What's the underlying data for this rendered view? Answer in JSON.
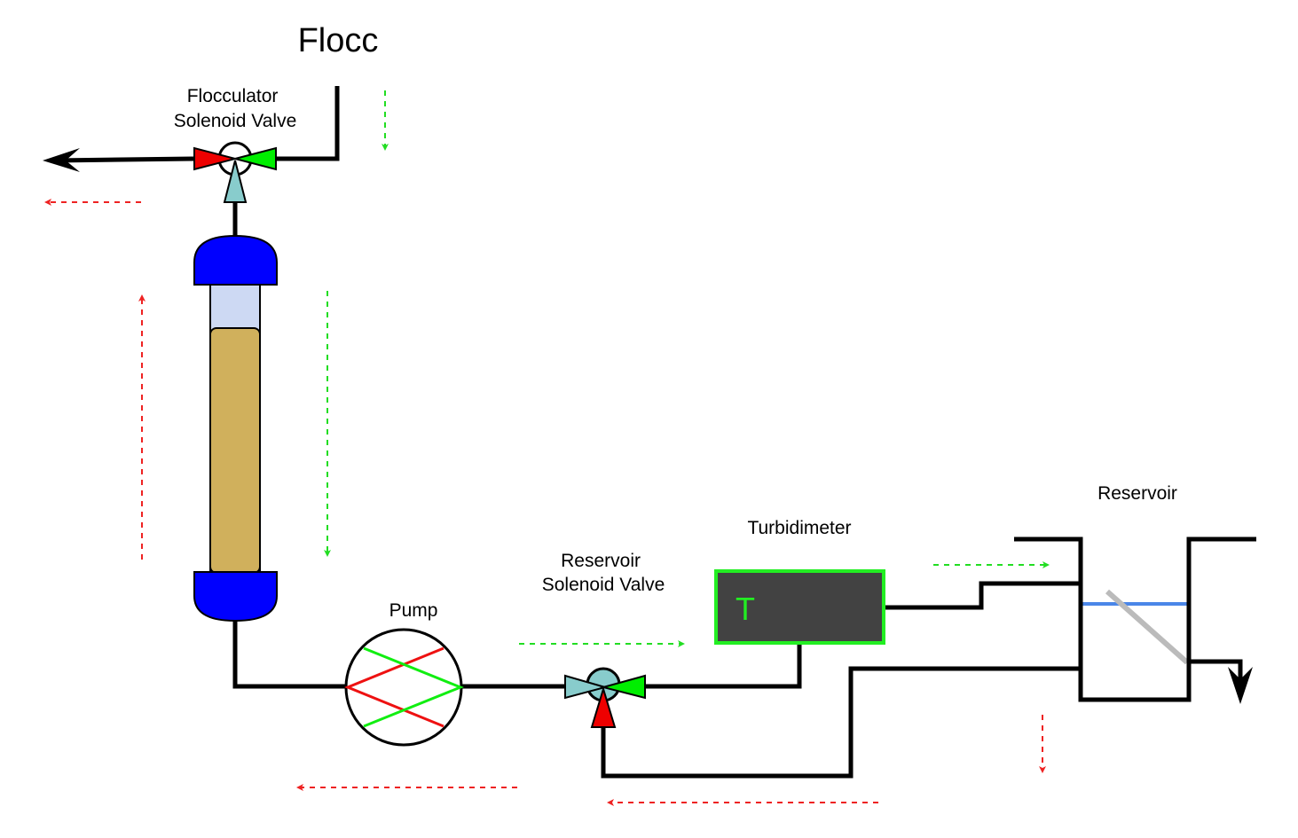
{
  "title": "Flocc",
  "labels": {
    "flocculator_valve": [
      "Flocculator",
      "Solenoid Valve"
    ],
    "pump": "Pump",
    "reservoir_valve": [
      "Reservoir",
      "Solenoid Valve"
    ],
    "turbidimeter": "Turbidimeter",
    "turbidimeter_symbol": "T",
    "reservoir": "Reservoir"
  },
  "colors": {
    "pipe": "#000000",
    "flow_forward": "#22dd22",
    "flow_reverse": "#ee2222",
    "valve_open": "#00ee00",
    "valve_closed": "#ee0000",
    "valve_actuator": "#88cccc",
    "column_cap": "#0000ff",
    "column_water": "#cdd9f3",
    "column_media": "#d0b05c",
    "turbidimeter_body": "#424242",
    "turbidimeter_border": "#22ee22",
    "water_level": "#4a86e8",
    "reservoir_baffle": "#bbbbbb"
  }
}
